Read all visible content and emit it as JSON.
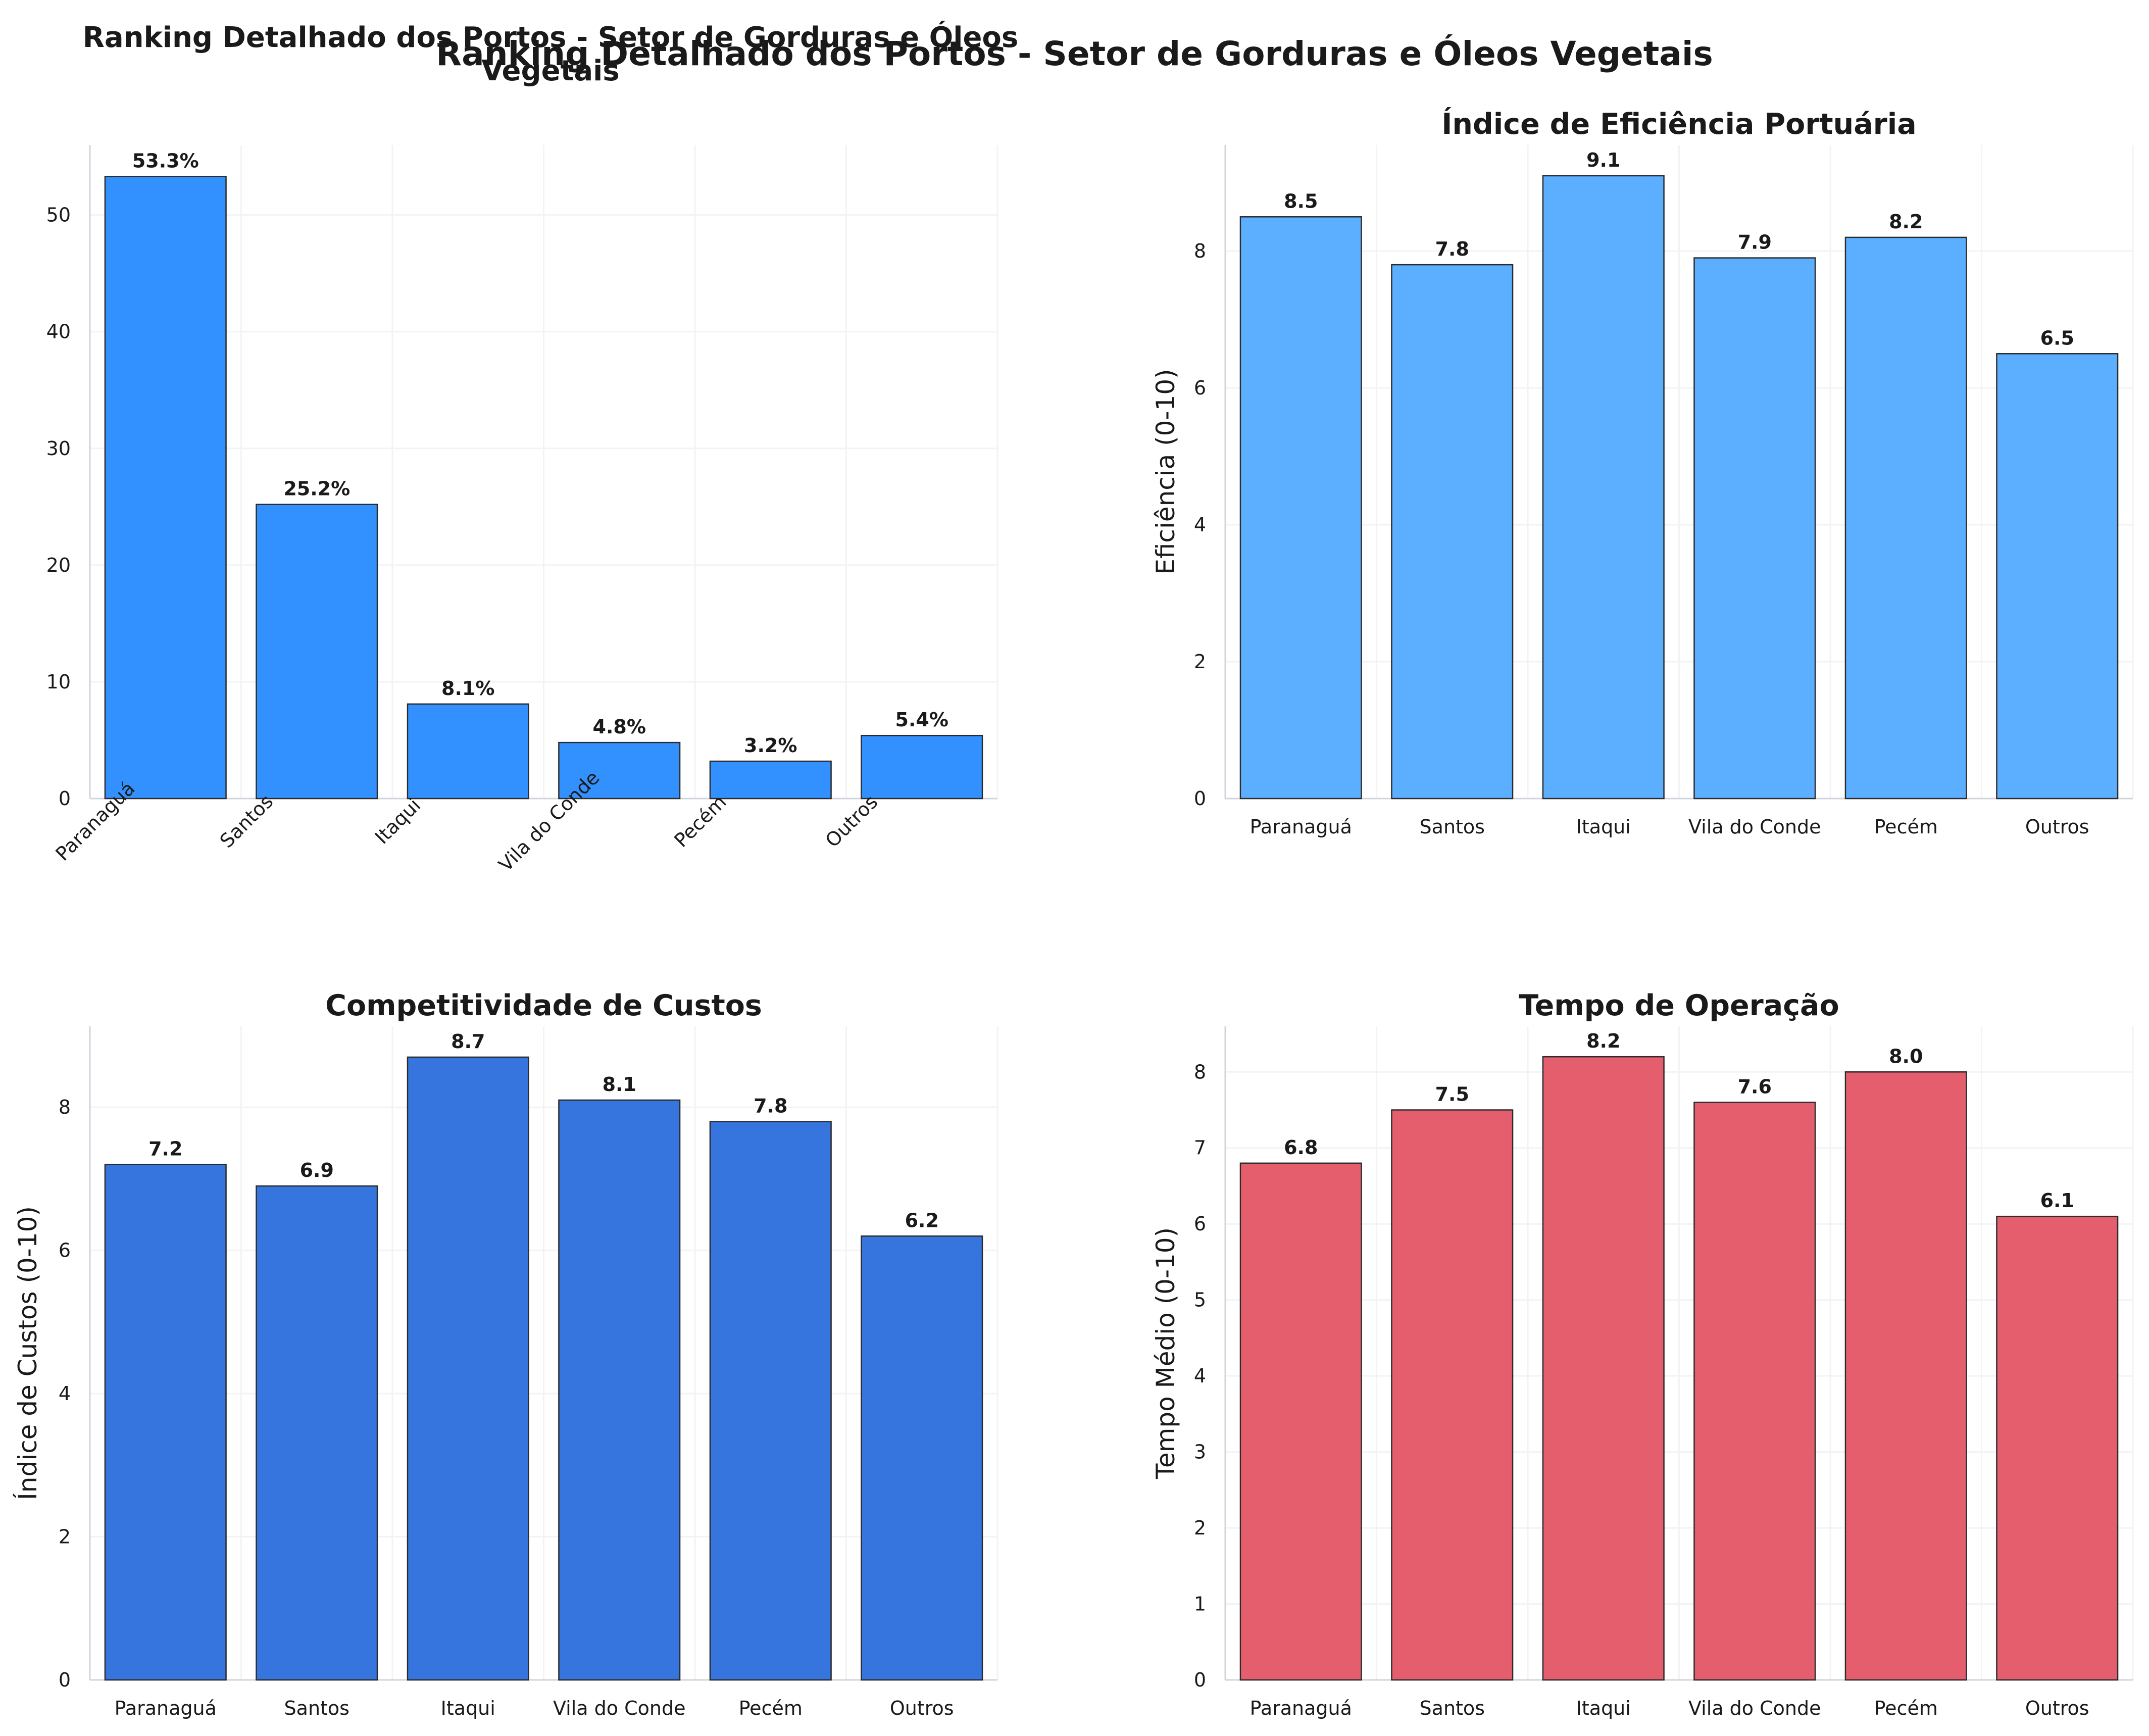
{
  "suptitle": "Ranking Detalhado dos Portos - Setor de Gorduras e Óleos Vegetais",
  "overlap_title": "Ranking Detalhado dos Portos - Setor de Gorduras e Óleos Vegetais",
  "chart_data": [
    {
      "type": "bar",
      "title": "",
      "xlabel": "",
      "ylabel": "",
      "categories": [
        "Paranaguá",
        "Santos",
        "Itaqui",
        "Vila do Conde",
        "Pecém",
        "Outros"
      ],
      "values": [
        53.3,
        25.2,
        8.1,
        4.8,
        3.2,
        5.4
      ],
      "value_labels": [
        "53.3%",
        "25.2%",
        "8.1%",
        "4.8%",
        "3.2%",
        "5.4%"
      ],
      "ylim": [
        0,
        56
      ],
      "yticks": [
        0,
        10,
        20,
        30,
        40,
        50
      ],
      "grid": true,
      "color": "#3391ff",
      "xtick_rotation": 45
    },
    {
      "type": "bar",
      "title": "Índice de Eficiência Portuária",
      "xlabel": "",
      "ylabel": "Eficiência (0-10)",
      "categories": [
        "Paranaguá",
        "Santos",
        "Itaqui",
        "Vila do Conde",
        "Pecém",
        "Outros"
      ],
      "values": [
        8.5,
        7.8,
        9.1,
        7.9,
        8.2,
        6.5
      ],
      "value_labels": [
        "8.5",
        "7.8",
        "9.1",
        "7.9",
        "8.2",
        "6.5"
      ],
      "ylim": [
        0,
        9.55
      ],
      "yticks": [
        0,
        2,
        4,
        6,
        8
      ],
      "grid": true,
      "color": "#5caeff",
      "xtick_rotation": 0
    },
    {
      "type": "bar",
      "title": "Competitividade de Custos",
      "xlabel": "",
      "ylabel": "Índice de Custos (0-10)",
      "categories": [
        "Paranaguá",
        "Santos",
        "Itaqui",
        "Vila do Conde",
        "Pecém",
        "Outros"
      ],
      "values": [
        7.2,
        6.9,
        8.7,
        8.1,
        7.8,
        6.2
      ],
      "value_labels": [
        "7.2",
        "6.9",
        "8.7",
        "8.1",
        "7.8",
        "6.2"
      ],
      "ylim": [
        0,
        9.13
      ],
      "yticks": [
        0,
        2,
        4,
        6,
        8
      ],
      "grid": true,
      "color": "#3575dd",
      "xtick_rotation": 0
    },
    {
      "type": "bar",
      "title": "Tempo de Operação",
      "xlabel": "",
      "ylabel": "Tempo Médio (0-10)",
      "categories": [
        "Paranaguá",
        "Santos",
        "Itaqui",
        "Vila do Conde",
        "Pecém",
        "Outros"
      ],
      "values": [
        6.8,
        7.5,
        8.2,
        7.6,
        8.0,
        6.1
      ],
      "value_labels": [
        "6.8",
        "7.5",
        "8.2",
        "7.6",
        "8.0",
        "6.1"
      ],
      "ylim": [
        0,
        8.6
      ],
      "yticks": [
        0,
        1,
        2,
        3,
        4,
        5,
        6,
        7,
        8
      ],
      "grid": true,
      "color": "#e45e6d",
      "xtick_rotation": 0
    }
  ]
}
